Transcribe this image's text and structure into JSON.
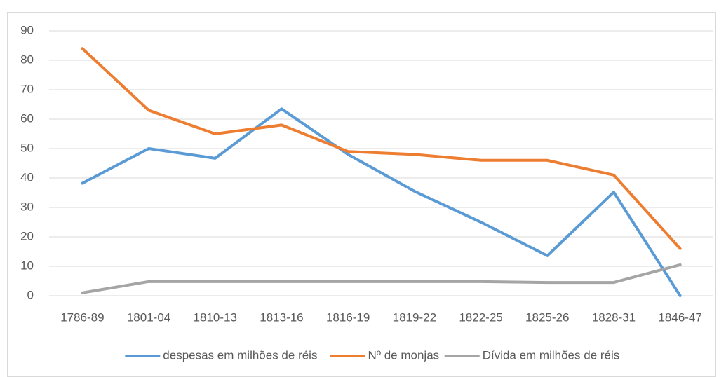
{
  "chart_data": {
    "type": "line",
    "categories": [
      "1786-89",
      "1801-04",
      "1810-13",
      "1813-16",
      "1816-19",
      "1819-22",
      "1822-25",
      "1825-26",
      "1828-31",
      "1846-47"
    ],
    "series": [
      {
        "name": "despesas em milhões de réis",
        "color": "#5b9bd5",
        "values": [
          38.2,
          50,
          46.7,
          63.5,
          48,
          35.5,
          25,
          13.6,
          35.2,
          0
        ]
      },
      {
        "name": "Nº de monjas",
        "color": "#ed7d31",
        "values": [
          84,
          63,
          55,
          58,
          49,
          48,
          46,
          46,
          41,
          16
        ]
      },
      {
        "name": "Dívida em milhões de réis",
        "color": "#a5a5a5",
        "values": [
          1,
          4.8,
          4.8,
          4.8,
          4.8,
          4.8,
          4.8,
          4.5,
          4.5,
          10.5
        ]
      }
    ],
    "ylim": [
      0,
      90
    ],
    "yticks": [
      0,
      10,
      20,
      30,
      40,
      50,
      60,
      70,
      80,
      90
    ],
    "grid": true,
    "legend": "bottom"
  }
}
